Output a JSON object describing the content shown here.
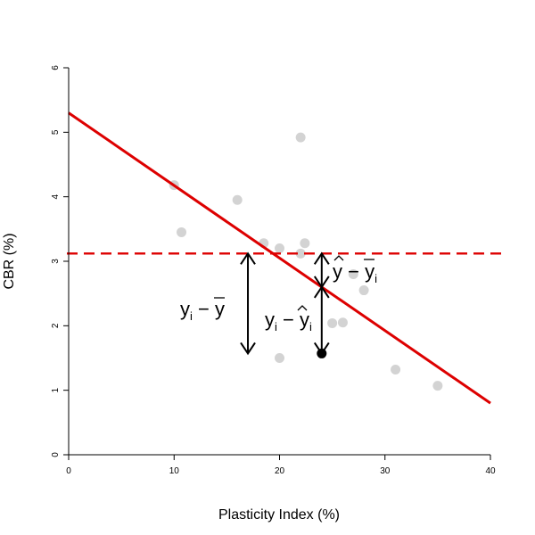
{
  "chart_data": {
    "type": "scatter",
    "xlabel": "Plasticity Index (%)",
    "ylabel": "CBR (%)",
    "xlim": [
      0,
      40
    ],
    "ylim": [
      0,
      6
    ],
    "x_ticks": [
      "0",
      "10",
      "20",
      "30",
      "40"
    ],
    "y_ticks": [
      "0",
      "1",
      "2",
      "3",
      "4",
      "5",
      "6"
    ],
    "points": [
      {
        "x": 10.0,
        "y": 4.18
      },
      {
        "x": 10.7,
        "y": 3.45
      },
      {
        "x": 16.0,
        "y": 3.95
      },
      {
        "x": 18.5,
        "y": 3.28
      },
      {
        "x": 20.0,
        "y": 3.2
      },
      {
        "x": 20.0,
        "y": 1.5
      },
      {
        "x": 22.0,
        "y": 4.92
      },
      {
        "x": 22.0,
        "y": 3.12
      },
      {
        "x": 22.4,
        "y": 3.28
      },
      {
        "x": 25.0,
        "y": 2.04
      },
      {
        "x": 26.0,
        "y": 2.05
      },
      {
        "x": 27.0,
        "y": 2.8
      },
      {
        "x": 28.0,
        "y": 2.55
      },
      {
        "x": 31.0,
        "y": 1.32
      },
      {
        "x": 35.0,
        "y": 1.07
      }
    ],
    "highlight_point": {
      "x": 24.0,
      "y": 1.57
    },
    "regression_line": {
      "intercept": 5.3,
      "slope": -0.1125
    },
    "mean_line": {
      "y": 3.12
    },
    "arrows": [
      {
        "x": 17.0,
        "y_from": 3.12,
        "y_to": 1.57
      },
      {
        "x": 24.0,
        "y_from": 2.6,
        "y_to": 1.57
      },
      {
        "x": 24.0,
        "y_from": 3.12,
        "y_to": 2.6
      }
    ],
    "colors": {
      "points": "#d3d3d3",
      "line": "#dd0000",
      "highlight": "#000000"
    },
    "grid": false
  }
}
